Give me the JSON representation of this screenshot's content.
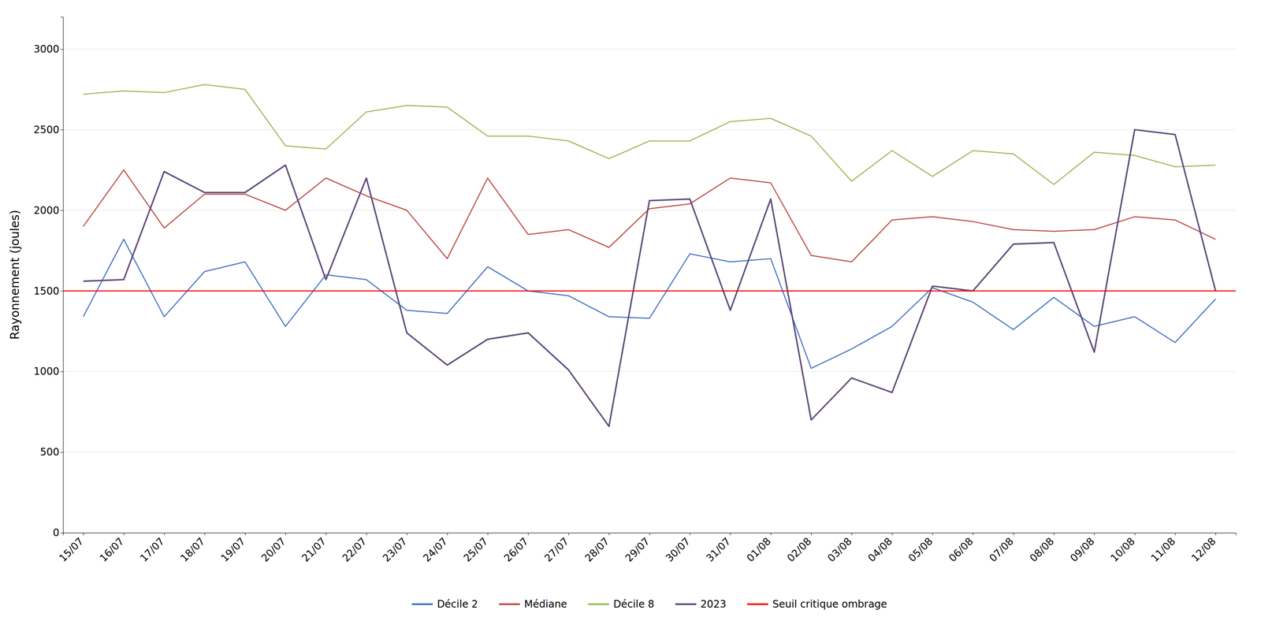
{
  "chart_data": {
    "type": "line",
    "ylabel": "Rayonnement (joules)",
    "categories": [
      "15/07",
      "16/07",
      "17/07",
      "18/07",
      "19/07",
      "20/07",
      "21/07",
      "22/07",
      "23/07",
      "24/07",
      "25/07",
      "26/07",
      "27/07",
      "28/07",
      "29/07",
      "30/07",
      "31/07",
      "01/08",
      "02/08",
      "03/08",
      "04/08",
      "05/08",
      "06/08",
      "07/08",
      "08/08",
      "09/08",
      "10/08",
      "11/08",
      "12/08"
    ],
    "series": [
      {
        "name": "Décile 2",
        "color": "#4472C4",
        "values": [
          1340,
          1820,
          1340,
          1620,
          1680,
          1280,
          1600,
          1570,
          1380,
          1360,
          1650,
          1500,
          1470,
          1340,
          1330,
          1730,
          1680,
          1700,
          1020,
          1140,
          1280,
          1520,
          1430,
          1260,
          1460,
          1280,
          1340,
          1180,
          1450
        ]
      },
      {
        "name": "Médiane",
        "color": "#BE4B48",
        "values": [
          1900,
          2250,
          1890,
          2100,
          2100,
          2000,
          2200,
          2090,
          2000,
          1700,
          2200,
          1850,
          1880,
          1770,
          2010,
          2040,
          2200,
          2170,
          1720,
          1680,
          1940,
          1960,
          1930,
          1880,
          1870,
          1880,
          1960,
          1940,
          1820
        ]
      },
      {
        "name": "Décile 8",
        "color": "#9BBB59",
        "values": [
          2720,
          2740,
          2730,
          2780,
          2750,
          2400,
          2380,
          2610,
          2650,
          2640,
          2460,
          2460,
          2430,
          2320,
          2430,
          2430,
          2550,
          2570,
          2460,
          2180,
          2370,
          2210,
          2370,
          2350,
          2160,
          2360,
          2340,
          2270,
          2280
        ]
      },
      {
        "name": "2023",
        "color": "#604A7B",
        "values": [
          1560,
          1570,
          2240,
          2110,
          2110,
          2280,
          1570,
          2200,
          1240,
          1040,
          1200,
          1240,
          1010,
          660,
          2060,
          2070,
          1380,
          2070,
          700,
          960,
          870,
          1530,
          1500,
          1790,
          1800,
          1120,
          2500,
          2470,
          1500
        ]
      }
    ],
    "threshold": {
      "name": "Seuil critique ombrage",
      "color": "#FF0000",
      "value": 1500
    },
    "ylim": [
      0,
      3200
    ],
    "yticks": [
      0,
      500,
      1000,
      1500,
      2000,
      2500,
      3000
    ],
    "grid": true,
    "legend": "bottom"
  }
}
